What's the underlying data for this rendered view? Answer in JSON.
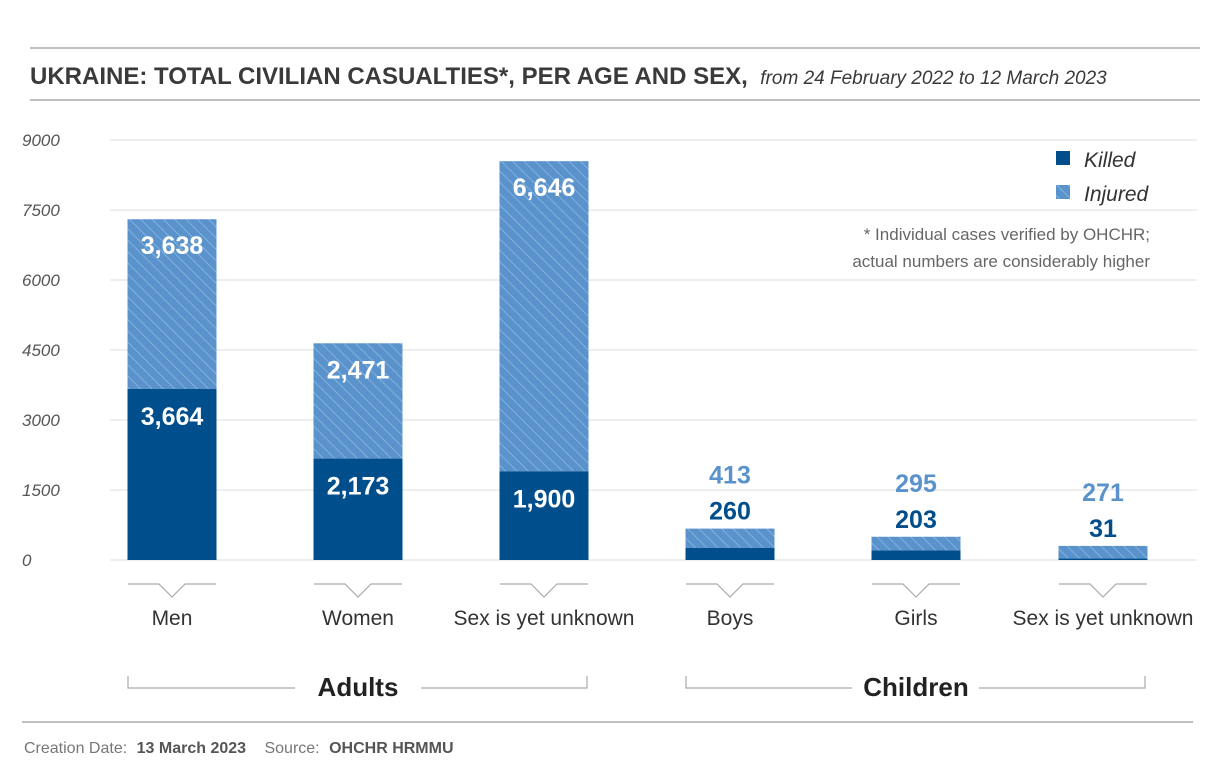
{
  "header": {
    "title": "UKRAINE: TOTAL CIVILIAN CASUALTIES*, PER AGE AND SEX,",
    "subtitle": "from 24 February 2022 to 12 March 2023"
  },
  "legend": {
    "killed": "Killed",
    "injured": "Injured"
  },
  "note": {
    "line1": "* Individual cases verified by OHCHR;",
    "line2": "actual numbers are considerably higher"
  },
  "groups": {
    "adults": "Adults",
    "children": "Children"
  },
  "footer": {
    "creation_label": "Creation Date:",
    "creation_date": "13 March 2023",
    "source_label": "Source:",
    "source": "OHCHR HRMMU"
  },
  "colors": {
    "killed": "#004e8c",
    "injured": "#5a93cc",
    "grid": "#dddddd"
  },
  "chart_data": {
    "type": "bar",
    "stacked": true,
    "categories": [
      "Men",
      "Women",
      "Sex is yet unknown",
      "Boys",
      "Girls",
      "Sex is yet unknown"
    ],
    "series": [
      {
        "name": "Killed",
        "values": [
          3664,
          2173,
          1900,
          260,
          203,
          31
        ]
      },
      {
        "name": "Injured",
        "values": [
          3638,
          2471,
          6646,
          413,
          295,
          271
        ]
      }
    ],
    "data_labels": {
      "killed": [
        "3,664",
        "2,173",
        "1,900",
        "260",
        "203",
        "31"
      ],
      "injured": [
        "3,638",
        "2,471",
        "6,646",
        "413",
        "295",
        "271"
      ]
    },
    "yticks": [
      "0",
      "1500",
      "3000",
      "4500",
      "6000",
      "7500",
      "9000"
    ],
    "ylim": [
      0,
      9000
    ],
    "grid": true,
    "legend_position": "top-right"
  }
}
